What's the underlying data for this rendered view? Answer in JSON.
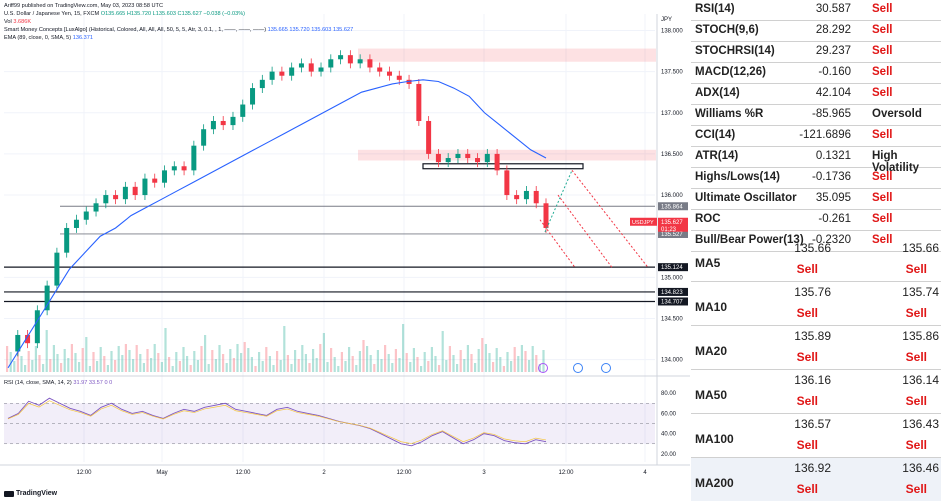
{
  "header": {
    "published": "Ariff99 published on TradingView.com, May 03, 2023 08:58 UTC",
    "symbol": "U.S. Dollar / Japanese Yen, 15, FXCM",
    "ohlc": "O135.665 H135.720 L135.603 C135.627 −0.038 (−0.03%)",
    "vol_label": "Vol",
    "vol_value": "3.686K",
    "smc": "Smart Money Concepts [LuxAlgo] (Historical, Colored, All, All, All, 50, 5, 5, Atr, 3, 0.1, , 1, ——, ——, ——)",
    "smc_values": "135.665  135.720  135.603  135.627",
    "ema_label": "EMA (89, close, 0, SMA, 5)",
    "ema_value": "136.371",
    "rsi_label": "RSI (14, close, SMA, 14, 2)",
    "rsi_values": "31.97  33.57  0  0",
    "brand": "TradingView"
  },
  "chart_data": {
    "type": "candlestick",
    "symbol": "USDJPY",
    "currency_label": "JPY",
    "price_axis": [
      {
        "label": "138.000",
        "value": 138.0
      },
      {
        "label": "137.500",
        "value": 137.5
      },
      {
        "label": "137.000",
        "value": 137.0
      },
      {
        "label": "136.500",
        "value": 136.5
      },
      {
        "label": "136.000",
        "value": 136.0
      },
      {
        "label": "135.000",
        "value": 135.0
      },
      {
        "label": "134.500",
        "value": 134.5
      },
      {
        "label": "134.000",
        "value": 134.0
      }
    ],
    "ylim": [
      133.85,
      138.2
    ],
    "price_tags": [
      {
        "label": "135.864",
        "value": 135.864,
        "color": "#787b86"
      },
      {
        "label": "135.527",
        "value": 135.527,
        "color": "#787b86"
      },
      {
        "label": "135.124",
        "value": 135.124,
        "color": "#131722"
      },
      {
        "label": "134.823",
        "value": 134.823,
        "color": "#131722"
      },
      {
        "label": "134.707",
        "value": 134.707,
        "color": "#131722"
      }
    ],
    "last_price": {
      "symbol": "USDJPY",
      "value": "135.627",
      "countdown": "01:23",
      "color": "#f23645"
    },
    "time_axis": [
      "12:00",
      "May",
      "12:00",
      "2",
      "12:00",
      "3",
      "12:00",
      "4"
    ],
    "close_path": [
      134.1,
      134.3,
      134.2,
      134.6,
      134.9,
      135.3,
      135.6,
      135.7,
      135.8,
      135.9,
      136.0,
      135.95,
      136.1,
      136.0,
      136.2,
      136.15,
      136.3,
      136.35,
      136.3,
      136.6,
      136.8,
      136.9,
      136.85,
      136.95,
      137.1,
      137.3,
      137.4,
      137.5,
      137.45,
      137.55,
      137.6,
      137.5,
      137.55,
      137.65,
      137.7,
      137.6,
      137.65,
      137.55,
      137.5,
      137.45,
      137.4,
      137.35,
      136.9,
      136.5,
      136.4,
      136.45,
      136.5,
      136.45,
      136.4,
      136.5,
      136.3,
      136.0,
      135.95,
      136.05,
      135.9,
      135.6
    ],
    "ema_path": [
      133.9,
      134.2,
      134.5,
      134.8,
      135.1,
      135.3,
      135.5,
      135.6,
      135.75,
      135.85,
      135.95,
      136.05,
      136.15,
      136.25,
      136.35,
      136.45,
      136.55,
      136.65,
      136.75,
      136.85,
      136.95,
      137.05,
      137.15,
      137.25,
      137.3,
      137.35,
      137.38,
      137.4,
      137.38,
      137.3,
      137.2,
      137.0,
      136.85,
      136.7,
      136.55,
      136.45
    ],
    "resistance_zones": [
      {
        "from": 137.62,
        "to": 137.78
      },
      {
        "from": 136.42,
        "to": 136.55
      }
    ],
    "order_block": {
      "from": 136.32,
      "to": 136.38
    },
    "rsi": {
      "axis": [
        {
          "label": "80.00",
          "value": 80
        },
        {
          "label": "60.00",
          "value": 60
        },
        {
          "label": "40.00",
          "value": 40
        },
        {
          "label": "20.00",
          "value": 20
        }
      ],
      "ylim": [
        12,
        90
      ],
      "band": [
        30,
        70
      ],
      "values": [
        55,
        60,
        72,
        68,
        75,
        70,
        65,
        62,
        58,
        66,
        70,
        64,
        60,
        62,
        58,
        55,
        60,
        64,
        62,
        66,
        68,
        70,
        64,
        62,
        60,
        58,
        64,
        66,
        62,
        60,
        58,
        55,
        52,
        50,
        48,
        45,
        40,
        35,
        30,
        28,
        32,
        38,
        42,
        36,
        30,
        34,
        40,
        38,
        33,
        31,
        30,
        34,
        32
      ]
    },
    "arrows": [
      {
        "from": [
          135.7,
          0.805
        ],
        "to": [
          135.1,
          0.88
        ]
      },
      {
        "from": [
          136.05,
          0.81
        ],
        "to": [
          135.1,
          0.94
        ]
      },
      {
        "from": [
          136.35,
          0.84
        ],
        "to": [
          135.1,
          0.99
        ]
      }
    ]
  },
  "oscillators": [
    {
      "name": "RSI(14)",
      "value": "30.587",
      "action": "Sell",
      "kind": "sell"
    },
    {
      "name": "STOCH(9,6)",
      "value": "28.292",
      "action": "Sell",
      "kind": "sell"
    },
    {
      "name": "STOCHRSI(14)",
      "value": "29.237",
      "action": "Sell",
      "kind": "sell"
    },
    {
      "name": "MACD(12,26)",
      "value": "-0.160",
      "action": "Sell",
      "kind": "sell"
    },
    {
      "name": "ADX(14)",
      "value": "42.104",
      "action": "Sell",
      "kind": "sell"
    },
    {
      "name": "Williams %R",
      "value": "-85.965",
      "action": "Oversold",
      "kind": "neutral"
    },
    {
      "name": "CCI(14)",
      "value": "-121.6896",
      "action": "Sell",
      "kind": "sell"
    },
    {
      "name": "ATR(14)",
      "value": "0.1321",
      "action": "High Volatility",
      "kind": "neutral"
    },
    {
      "name": "Highs/Lows(14)",
      "value": "-0.1736",
      "action": "Sell",
      "kind": "sell"
    },
    {
      "name": "Ultimate Oscillator",
      "value": "35.095",
      "action": "Sell",
      "kind": "sell"
    },
    {
      "name": "ROC",
      "value": "-0.261",
      "action": "Sell",
      "kind": "sell"
    },
    {
      "name": "Bull/Bear Power(13)",
      "value": "-0.2320",
      "action": "Sell",
      "kind": "sell"
    }
  ],
  "moving_averages": [
    {
      "name": "MA5",
      "simple": "135.66",
      "simple_action": "Sell",
      "exp": "135.66",
      "exp_action": "Sell"
    },
    {
      "name": "MA10",
      "simple": "135.76",
      "simple_action": "Sell",
      "exp": "135.74",
      "exp_action": "Sell"
    },
    {
      "name": "MA20",
      "simple": "135.89",
      "simple_action": "Sell",
      "exp": "135.86",
      "exp_action": "Sell"
    },
    {
      "name": "MA50",
      "simple": "136.16",
      "simple_action": "Sell",
      "exp": "136.14",
      "exp_action": "Sell"
    },
    {
      "name": "MA100",
      "simple": "136.57",
      "simple_action": "Sell",
      "exp": "136.43",
      "exp_action": "Sell"
    },
    {
      "name": "MA200",
      "simple": "136.92",
      "simple_action": "Sell",
      "exp": "136.46",
      "exp_action": "Sell"
    }
  ]
}
